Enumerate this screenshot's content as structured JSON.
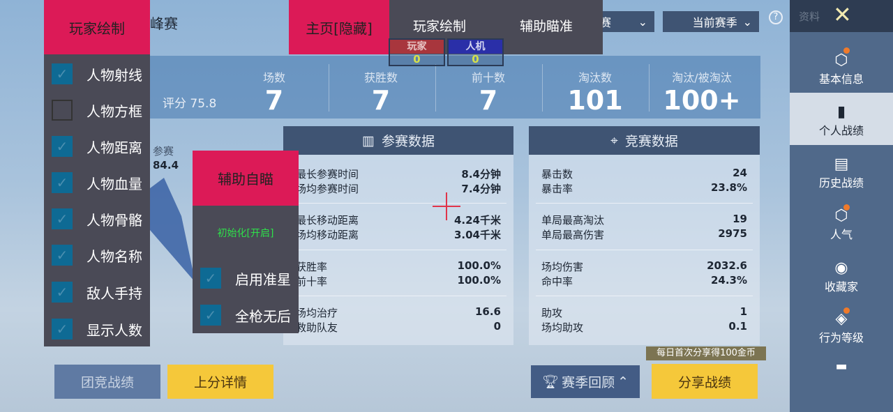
{
  "header": {
    "mode_partial": "峰赛",
    "mode_dropdown": "赛",
    "season_dropdown": "当前赛季",
    "profile_label": "资料"
  },
  "stats": {
    "rating_label": "评分",
    "rating": "75.8",
    "items": [
      {
        "label": "场数",
        "value": "7"
      },
      {
        "label": "获胜数",
        "value": "7"
      },
      {
        "label": "前十数",
        "value": "7"
      },
      {
        "label": "淘汰数",
        "value": "101"
      },
      {
        "label": "淘汰/被淘汰",
        "value": "100+"
      }
    ]
  },
  "radar": {
    "label": "参赛",
    "value": "84.4"
  },
  "participation": {
    "title": "参赛数据",
    "rows": [
      {
        "k1": "最长参赛时间",
        "v1": "8.4分钟",
        "k2": "场均参赛时间",
        "v2": "7.4分钟"
      },
      {
        "k1": "最长移动距离",
        "v1": "4.24千米",
        "k2": "场均移动距离",
        "v2": "3.04千米"
      },
      {
        "k1": "获胜率",
        "v1": "100.0%",
        "k2": "前十率",
        "v2": "100.0%"
      },
      {
        "k1": "场均治疗",
        "v1": "16.6",
        "k2": "救助队友",
        "v2": "0"
      }
    ]
  },
  "competition": {
    "title": "竞赛数据",
    "rows": [
      {
        "k1": "暴击数",
        "v1": "24",
        "k2": "暴击率",
        "v2": "23.8%"
      },
      {
        "k1": "单局最高淘汰",
        "v1": "19",
        "k2": "单局最高伤害",
        "v2": "2975"
      },
      {
        "k1": "场均伤害",
        "v1": "2032.6",
        "k2": "命中率",
        "v2": "24.3%"
      },
      {
        "k1": "助攻",
        "v1": "1",
        "k2": "场均助攻",
        "v2": "0.1"
      }
    ]
  },
  "buttons": {
    "team": "团竞战绩",
    "rank_detail": "上分详情",
    "season_review": "赛季回顾",
    "share": "分享战绩",
    "share_tip": "每日首次分享得100金币"
  },
  "sidebar": {
    "items": [
      {
        "label": "基本信息",
        "icon": "profile-icon",
        "dot": true
      },
      {
        "label": "个人战绩",
        "icon": "chart-doc-icon",
        "selected": true
      },
      {
        "label": "历史战绩",
        "icon": "history-doc-icon"
      },
      {
        "label": "人气",
        "icon": "popularity-icon",
        "dot": true
      },
      {
        "label": "收藏家",
        "icon": "collector-icon"
      },
      {
        "label": "行为等级",
        "icon": "behavior-icon",
        "dot": true
      }
    ]
  },
  "overlay": {
    "player_menu": {
      "title": "玩家绘制",
      "items": [
        {
          "label": "人物射线",
          "checked": true
        },
        {
          "label": "人物方框",
          "checked": false
        },
        {
          "label": "人物距离",
          "checked": true
        },
        {
          "label": "人物血量",
          "checked": true
        },
        {
          "label": "人物骨骼",
          "checked": true
        },
        {
          "label": "人物名称",
          "checked": true
        },
        {
          "label": "敌人手持",
          "checked": true
        },
        {
          "label": "显示人数",
          "checked": true
        }
      ]
    },
    "tabs": {
      "home": "主页[隐藏]",
      "draw": "玩家绘制",
      "aim": "辅助瞄准"
    },
    "counters": {
      "player_label": "玩家",
      "player_count": "0",
      "bot_label": "人机",
      "bot_count": "0"
    },
    "aim_menu": {
      "title": "辅助自瞄",
      "init": "初始化[开启]",
      "items": [
        {
          "label": "启用准星",
          "checked": true
        },
        {
          "label": "全枪无后",
          "checked": true
        }
      ]
    },
    "accent": "#dc1a57"
  }
}
